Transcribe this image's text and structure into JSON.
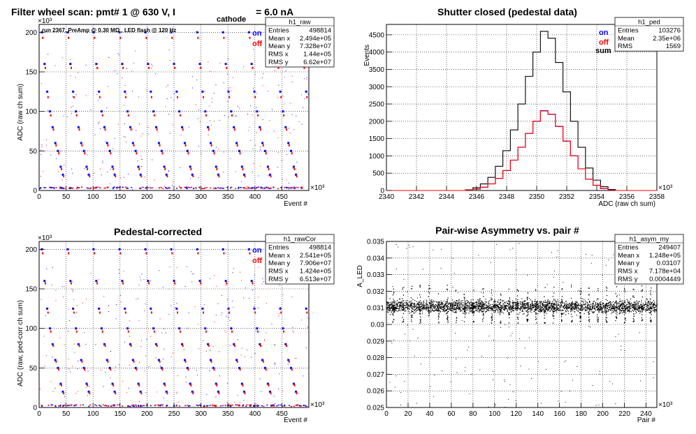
{
  "panels": [
    {
      "key": "raw",
      "title_parts": [
        "Filter wheel scan: pmt#   1 @   630 V, I",
        "cathode",
        "= 6.0 nA"
      ],
      "exponent_y": "×10³",
      "exponent_x": "×10³",
      "xlabel": "Event #",
      "ylabel": "ADC (raw ch sum)",
      "run_note": "run 2367, PreAmp @ 0.30 MΩ , LED flash @  120 Hz",
      "legend": [
        {
          "label": "on",
          "color": "#0000ff"
        },
        {
          "label": "off",
          "color": "#ff0000"
        }
      ],
      "stats": {
        "name": "h1_raw",
        "rows": [
          [
            "Entries",
            "498814"
          ],
          [
            "Mean x",
            "2.494e+05"
          ],
          [
            "Mean y",
            "7.328e+07"
          ],
          [
            "RMS x",
            "1.44e+05"
          ],
          [
            "RMS y",
            "6.62e+07"
          ]
        ]
      },
      "xticks": [
        "0",
        "50",
        "100",
        "150",
        "200",
        "250",
        "300",
        "350",
        "400",
        "450"
      ],
      "yticks": [
        "0",
        "50",
        "100",
        "150",
        "200"
      ]
    },
    {
      "key": "ped",
      "title": "Shutter closed (pedestal data)",
      "exponent_x": "×10³",
      "xlabel": "ADC (raw ch sum)",
      "ylabel": "Events",
      "legend": [
        {
          "label": "on",
          "color": "#0000ff"
        },
        {
          "label": "off",
          "color": "#ff0000"
        },
        {
          "label": "sum",
          "color": "#000000"
        }
      ],
      "stats": {
        "name": "h1_ped",
        "rows": [
          [
            "Entries",
            "103276"
          ],
          [
            "Mean",
            "2.35e+06"
          ],
          [
            "RMS",
            "1569"
          ]
        ]
      },
      "xticks": [
        "2340",
        "2342",
        "2344",
        "2346",
        "2348",
        "2350",
        "2352",
        "2354",
        "2356",
        "2358"
      ],
      "yticks": [
        "0",
        "500",
        "1000",
        "1500",
        "2000",
        "2500",
        "3000",
        "3500",
        "4000",
        "4500"
      ]
    },
    {
      "key": "cor",
      "title": "Pedestal-corrected",
      "exponent_y": "×10³",
      "exponent_x": "×10³",
      "xlabel": "Event #",
      "ylabel": "ADC (raw, ped-corr ch sum)",
      "legend": [
        {
          "label": "on",
          "color": "#0000ff"
        },
        {
          "label": "off",
          "color": "#ff0000"
        }
      ],
      "stats": {
        "name": "h1_rawCor",
        "rows": [
          [
            "Entries",
            "498814"
          ],
          [
            "Mean x",
            "2.541e+05"
          ],
          [
            "Mean y",
            "7.906e+07"
          ],
          [
            "RMS x",
            "1.424e+05"
          ],
          [
            "RMS y",
            "6.513e+07"
          ]
        ]
      },
      "xticks": [
        "0",
        "50",
        "100",
        "150",
        "200",
        "250",
        "300",
        "350",
        "400",
        "450"
      ],
      "yticks": [
        "0",
        "50",
        "100",
        "150",
        "200"
      ]
    },
    {
      "key": "asym",
      "title": "Pair-wise Asymmetry vs. pair #",
      "exponent_x": "×10³",
      "xlabel": "Pair #",
      "ylabel": "A_LED",
      "stats": {
        "name": "h1_asym_my",
        "rows": [
          [
            "Entries",
            "249407"
          ],
          [
            "Mean x",
            "1.248e+05"
          ],
          [
            "Mean y",
            "0.03107"
          ],
          [
            "RMS x",
            "7.178e+04"
          ],
          [
            "RMS y",
            "0.0004449"
          ]
        ]
      },
      "xticks": [
        "0",
        "20",
        "40",
        "60",
        "80",
        "100",
        "120",
        "140",
        "160",
        "180",
        "200",
        "220",
        "240"
      ],
      "yticks": [
        "0.025",
        "0.026",
        "0.027",
        "0.028",
        "0.029",
        "0.03",
        "0.031",
        "0.032",
        "0.033",
        "0.034",
        "0.035"
      ]
    }
  ],
  "chart_data": [
    {
      "type": "scatter",
      "name_ref": "h1_raw",
      "x_unit_scale": 1000,
      "y_unit_scale": 1000,
      "xlim": [
        0,
        500
      ],
      "ylim": [
        0,
        210
      ],
      "grid": true,
      "period": 48,
      "steps": [
        {
          "offset": 5,
          "on": 200,
          "off": 193
        },
        {
          "offset": 10,
          "on": 160,
          "off": 155
        },
        {
          "offset": 15,
          "on": 125,
          "off": 118
        },
        {
          "offset": 20,
          "on": 100,
          "off": 95
        },
        {
          "offset": 25,
          "on": 80,
          "off": 77
        },
        {
          "offset": 30,
          "on": 60,
          "off": 57
        },
        {
          "offset": 35,
          "on": 50,
          "off": 47
        },
        {
          "offset": 40,
          "on": 30,
          "off": 27
        },
        {
          "offset": 44,
          "on": 20,
          "off": 18
        }
      ],
      "baseline": 3
    },
    {
      "type": "line",
      "name_ref": "h1_ped",
      "x_unit_scale": 1000,
      "xlim": [
        2340,
        2358
      ],
      "ylim": [
        0,
        4800
      ],
      "grid": true,
      "x": [
        2345.5,
        2346,
        2346.5,
        2347,
        2347.5,
        2348,
        2348.5,
        2349,
        2349.5,
        2350,
        2350.5,
        2351,
        2351.5,
        2352,
        2352.5,
        2353,
        2353.5,
        2354,
        2354.5,
        2355
      ],
      "series": [
        {
          "name": "sum",
          "color": "#000000",
          "values": [
            20,
            80,
            190,
            380,
            700,
            1150,
            1750,
            2500,
            3300,
            4000,
            4600,
            4400,
            3700,
            2850,
            2000,
            1250,
            650,
            300,
            110,
            30
          ]
        },
        {
          "name": "on",
          "color": "#0000ff",
          "values": [
            10,
            40,
            95,
            190,
            350,
            575,
            875,
            1250,
            1650,
            2000,
            2300,
            2200,
            1850,
            1425,
            1000,
            625,
            325,
            150,
            55,
            15
          ]
        },
        {
          "name": "off",
          "color": "#ff0000",
          "values": [
            10,
            42,
            97,
            192,
            352,
            578,
            878,
            1252,
            1652,
            2005,
            2310,
            2205,
            1855,
            1428,
            1002,
            627,
            327,
            152,
            56,
            15
          ]
        }
      ]
    },
    {
      "type": "scatter",
      "name_ref": "h1_rawCor",
      "x_unit_scale": 1000,
      "y_unit_scale": 1000,
      "xlim": [
        0,
        500
      ],
      "ylim": [
        0,
        210
      ],
      "grid": true,
      "period": 48,
      "steps": [
        {
          "offset": 5,
          "on": 200,
          "off": 195
        },
        {
          "offset": 10,
          "on": 160,
          "off": 157
        },
        {
          "offset": 15,
          "on": 125,
          "off": 120
        },
        {
          "offset": 20,
          "on": 100,
          "off": 96
        },
        {
          "offset": 25,
          "on": 80,
          "off": 78
        },
        {
          "offset": 30,
          "on": 60,
          "off": 58
        },
        {
          "offset": 35,
          "on": 50,
          "off": 48
        },
        {
          "offset": 40,
          "on": 30,
          "off": 28
        },
        {
          "offset": 44,
          "on": 20,
          "off": 18
        }
      ],
      "baseline": 2
    },
    {
      "type": "scatter",
      "name_ref": "h1_asym_my",
      "x_unit_scale": 1000,
      "xlim": [
        0,
        250
      ],
      "ylim": [
        0.025,
        0.035
      ],
      "grid": true,
      "band_center": 0.0311,
      "band_halfwidth": 0.0004,
      "dips_x": [
        6,
        15,
        23,
        31,
        39,
        48,
        56,
        64,
        72,
        80,
        89,
        97,
        105,
        113,
        121,
        130,
        138,
        146,
        154,
        162,
        171,
        179,
        187,
        195,
        203,
        212,
        220,
        228,
        236,
        244
      ],
      "dip_low": 0.0301
    }
  ]
}
